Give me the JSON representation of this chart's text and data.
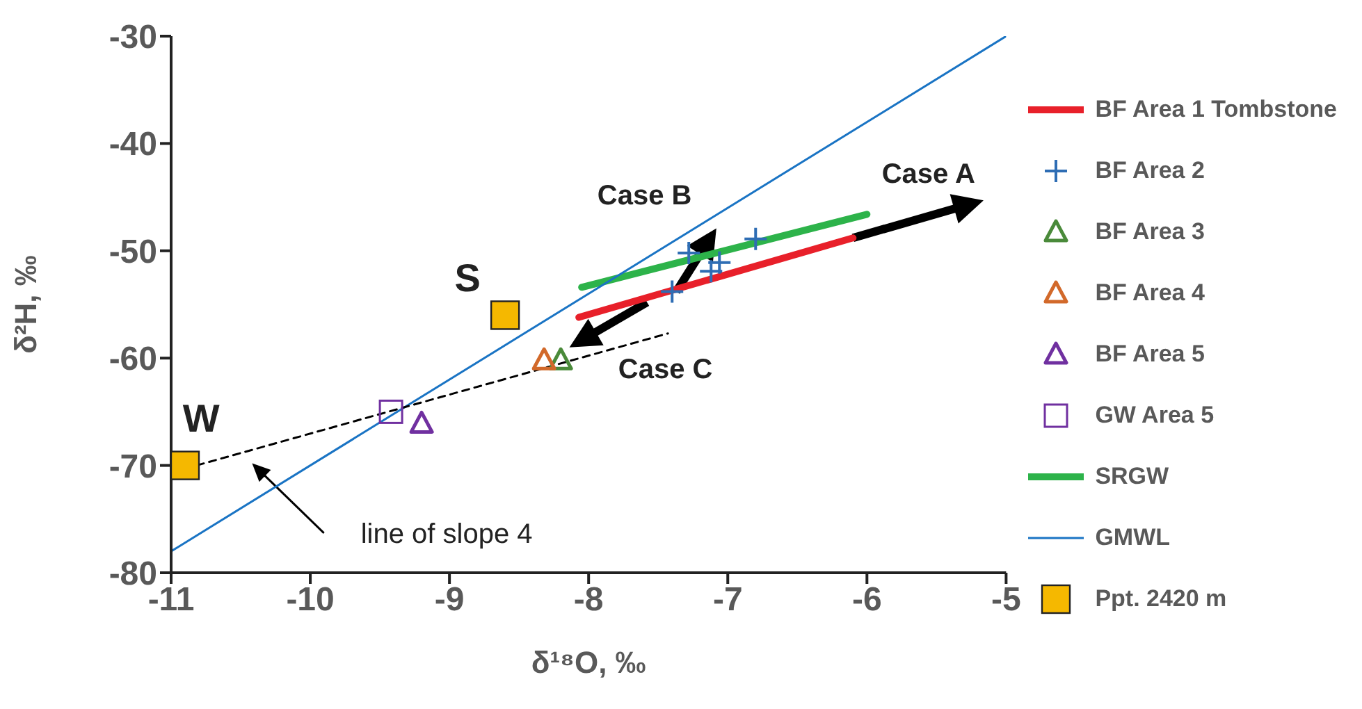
{
  "chart_data": {
    "type": "scatter",
    "xlabel": "δ¹⁸O, ‰",
    "ylabel": "δ²H, ‰",
    "xlim": [
      -11,
      -5
    ],
    "xticks": [
      -11,
      -10,
      -9,
      -8,
      -7,
      -6,
      -5
    ],
    "ylim": [
      -80,
      -30
    ],
    "yticks": [
      -80,
      -70,
      -60,
      -50,
      -40,
      -30
    ],
    "legend": "right",
    "series": [
      {
        "name": "BF Area 1 Tombstone",
        "type": "line",
        "color": "#e8202a",
        "x": [
          -8.07,
          -6.1
        ],
        "values": [
          -56.2,
          -48.8
        ],
        "marker": "none"
      },
      {
        "name": "BF Area 2",
        "color": "#2e6db4",
        "marker": "cross",
        "x": [
          -7.28,
          -7.06,
          -7.12,
          -7.4,
          -6.8
        ],
        "values": [
          -50.2,
          -51.1,
          -51.9,
          -53.8,
          -48.9
        ]
      },
      {
        "name": "BF Area 3",
        "color": "#4a8a3a",
        "marker": "triangle",
        "x": [
          -8.2
        ],
        "values": [
          -60.2
        ]
      },
      {
        "name": "BF Area 4",
        "color": "#d2692a",
        "marker": "triangle",
        "x": [
          -8.32
        ],
        "values": [
          -60.2
        ]
      },
      {
        "name": "BF Area 5",
        "color": "#7030a0",
        "marker": "triangle",
        "x": [
          -9.2
        ],
        "values": [
          -66.1
        ]
      },
      {
        "name": "GW Area 5",
        "color": "#7030a0",
        "marker": "square",
        "x": [
          -9.42
        ],
        "values": [
          -65
        ]
      },
      {
        "name": "SRGW",
        "type": "line",
        "color": "#2db34a",
        "x": [
          -8.05,
          -6
        ],
        "values": [
          -53.4,
          -46.6
        ],
        "marker": "none"
      },
      {
        "name": "GMWL",
        "type": "line",
        "color": "#1a74c4",
        "x": [
          -11,
          -5
        ],
        "values": [
          -78,
          -30
        ],
        "marker": "none"
      },
      {
        "name": "Ppt. 2420 m",
        "color": "#f5b800",
        "marker": "square",
        "x": [
          -10.9,
          -8.6
        ],
        "values": [
          -70,
          -56
        ]
      },
      {
        "type": "line",
        "color": "#000000",
        "line_style": "dashed",
        "x": [
          -10.9,
          -7.43
        ],
        "values": [
          -70.3,
          -57.7
        ],
        "marker": "none"
      }
    ],
    "annotations": [
      {
        "text": "Case A",
        "x": -6.1,
        "y": -48.8
      },
      "Case B",
      {
        "text": "Case C",
        "x": -7.58,
        "y": -54.8
      },
      "S",
      "W",
      "line of slope 4"
    ]
  }
}
